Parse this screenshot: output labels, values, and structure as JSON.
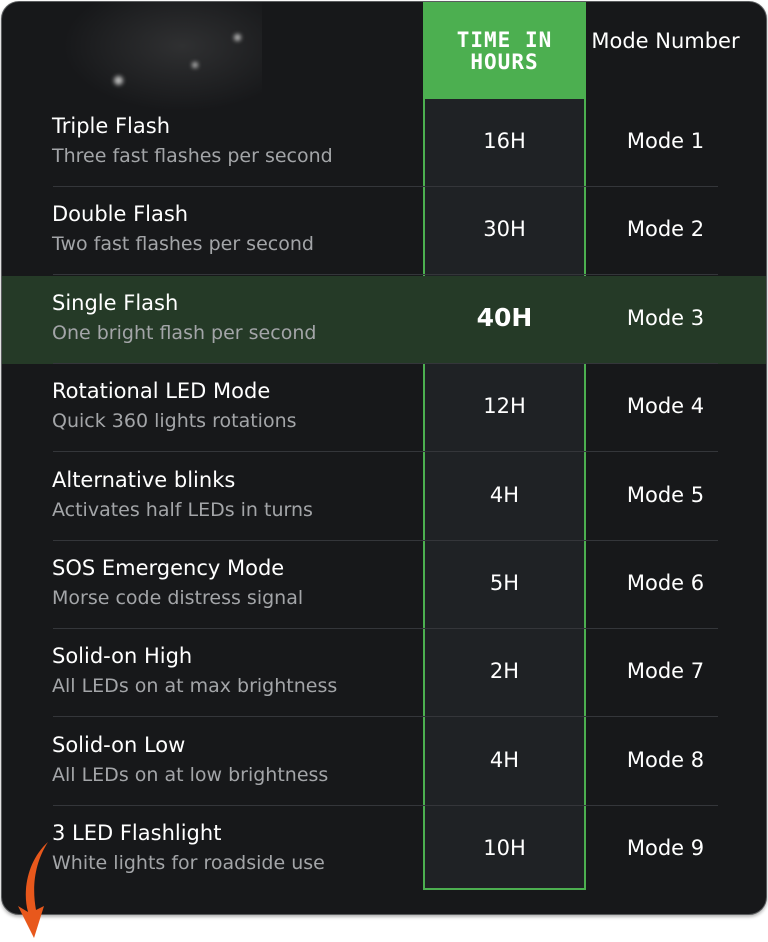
{
  "header": {
    "time_label": "TIME IN HOURS",
    "mode_label": "Mode Number"
  },
  "colors": {
    "accent": "#4caf50",
    "highlight_row": "#253a27",
    "background": "#17181a",
    "arrow": "#e8581c"
  },
  "highlighted_row": 2,
  "rows": [
    {
      "title": "Triple Flash",
      "desc": "Three fast flashes per second",
      "time": "16H",
      "mode": "Mode 1"
    },
    {
      "title": "Double Flash",
      "desc": "Two fast flashes per second",
      "time": "30H",
      "mode": "Mode 2"
    },
    {
      "title": "Single Flash",
      "desc": "One bright flash per second",
      "time": "40H",
      "mode": "Mode 3"
    },
    {
      "title": "Rotational LED Mode",
      "desc": "Quick 360 lights rotations",
      "time": "12H",
      "mode": "Mode 4"
    },
    {
      "title": "Alternative blinks",
      "desc": "Activates half LEDs in turns",
      "time": "4H",
      "mode": "Mode 5"
    },
    {
      "title": "SOS Emergency Mode",
      "desc": "Morse code distress signal",
      "time": "5H",
      "mode": "Mode 6"
    },
    {
      "title": "Solid-on High",
      "desc": "All LEDs on at max brightness",
      "time": "2H",
      "mode": "Mode 7"
    },
    {
      "title": "Solid-on Low",
      "desc": "All LEDs on at low brightness",
      "time": "4H",
      "mode": "Mode 8"
    },
    {
      "title": "3 LED Flashlight",
      "desc": "White lights for roadside use",
      "time": "10H",
      "mode": "Mode 9"
    }
  ]
}
